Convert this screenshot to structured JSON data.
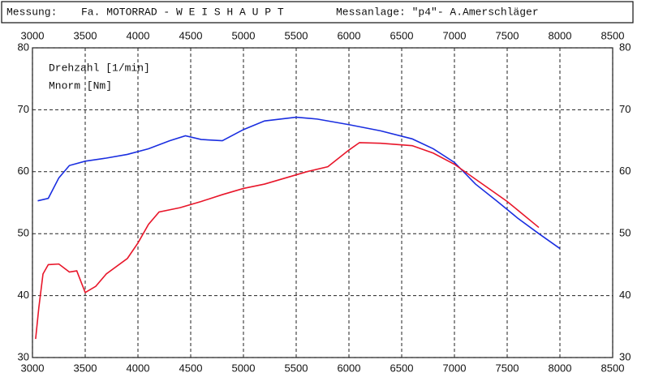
{
  "chart_data": {
    "type": "line",
    "header": [
      "Messung:",
      "Fa. MOTORRAD - W E I S H A U P T",
      "Messanlage: \"p4\"- A.Amerschläger"
    ],
    "x_label": "Drehzahl [1/min]",
    "y_label": "Mnorm [Nm]",
    "xlim": [
      3000,
      8500
    ],
    "xticks": [
      3000,
      3500,
      4000,
      4500,
      5000,
      5500,
      6000,
      6500,
      7000,
      7500,
      8000,
      8500
    ],
    "ylim": [
      30,
      80
    ],
    "yticks": [
      30,
      40,
      50,
      60,
      70,
      80
    ],
    "grid": true,
    "series": [
      {
        "color": "#1a2ee0",
        "x": [
          3050,
          3150,
          3250,
          3350,
          3500,
          3700,
          3900,
          4100,
          4300,
          4450,
          4600,
          4800,
          5000,
          5200,
          5500,
          5700,
          6000,
          6300,
          6600,
          6800,
          7000,
          7200,
          7400,
          7600,
          7800,
          8000
        ],
        "values": [
          55.3,
          55.7,
          59,
          61,
          61.7,
          62.2,
          62.8,
          63.7,
          65,
          65.8,
          65.2,
          65,
          66.8,
          68.2,
          68.8,
          68.5,
          67.6,
          66.6,
          65.3,
          63.7,
          61.5,
          58,
          55.3,
          52.5,
          50,
          47.6
        ]
      },
      {
        "color": "#e8162a",
        "x": [
          3030,
          3060,
          3100,
          3150,
          3250,
          3350,
          3420,
          3500,
          3600,
          3700,
          3900,
          4000,
          4100,
          4200,
          4400,
          4600,
          4800,
          5000,
          5200,
          5400,
          5600,
          5800,
          6000,
          6100,
          6300,
          6600,
          6800,
          7000,
          7200,
          7500,
          7800
        ],
        "values": [
          33,
          38,
          43.5,
          45,
          45.1,
          43.8,
          44,
          40.5,
          41.5,
          43.5,
          46,
          48.5,
          51.5,
          53.5,
          54.2,
          55.2,
          56.3,
          57.3,
          58,
          59,
          60,
          60.8,
          63.5,
          64.7,
          64.6,
          64.2,
          63,
          61.2,
          58.8,
          55.2,
          51
        ]
      }
    ]
  }
}
